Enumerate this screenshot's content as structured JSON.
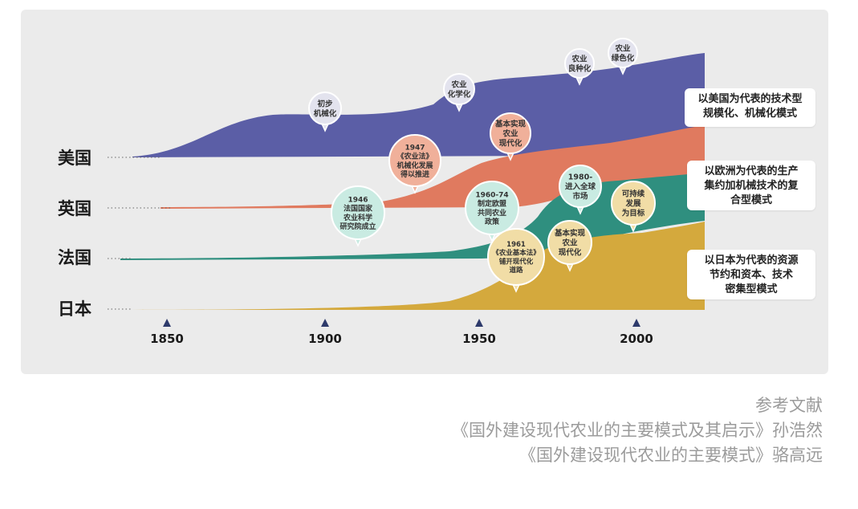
{
  "countries": [
    "美国",
    "英国",
    "法国",
    "日本"
  ],
  "years": [
    "1850",
    "1900",
    "1950",
    "2000"
  ],
  "colors": {
    "usa": "#5b5ea6",
    "uk": "#e07a5f",
    "france": "#2f8f7f",
    "japan": "#d4a93d",
    "bubble_usa": "#e3e3ee",
    "bubble_uk": "#f0b09a",
    "bubble_france": "#c9ebe2",
    "bubble_japan": "#f1dda6"
  },
  "bubbles": [
    {
      "id": "usa-initial-mechanization",
      "lines": [
        "初步",
        "机械化"
      ]
    },
    {
      "id": "usa-agri-chemicalization",
      "lines": [
        "农业",
        "化学化"
      ]
    },
    {
      "id": "usa-improved-seeds",
      "lines": [
        "农业",
        "良种化"
      ]
    },
    {
      "id": "usa-green-agriculture",
      "lines": [
        "农业",
        "绿色化"
      ]
    },
    {
      "id": "uk-1947-agriculture-act",
      "lines": [
        "1947",
        "《农业法》",
        "机械化发展",
        "得以推进"
      ]
    },
    {
      "id": "uk-modernization",
      "lines": [
        "基本实现",
        "农业",
        "现代化"
      ]
    },
    {
      "id": "fr-1946-institute",
      "lines": [
        "1946",
        "法国国家",
        "农业科学",
        "研究院成立"
      ]
    },
    {
      "id": "fr-1960-74-cap",
      "lines": [
        "1960-74",
        "制定欧盟",
        "共同农业",
        "政策"
      ]
    },
    {
      "id": "fr-1980-globalization",
      "lines": [
        "1980-",
        "进入全球",
        "市场"
      ]
    },
    {
      "id": "sustainable-development",
      "lines": [
        "可持续",
        "发展",
        "为目标"
      ]
    },
    {
      "id": "jp-1961-basic-law",
      "lines": [
        "1961",
        "《农业基本法》",
        "铺开现代化",
        "道路"
      ]
    },
    {
      "id": "jp-modernization",
      "lines": [
        "基本实现",
        "农业",
        "现代化"
      ]
    }
  ],
  "modes": [
    {
      "lines": [
        "以美国为代表的技术型",
        "规模化、机械化模式"
      ]
    },
    {
      "lines": [
        "以欧洲为代表的生产",
        "集约加机械技术的复",
        "合型模式"
      ]
    },
    {
      "lines": [
        "以日本为代表的资源",
        "节约和资本、技术",
        "密集型模式"
      ]
    }
  ],
  "references": {
    "title": "参考文献",
    "items": [
      "《国外建设现代农业的主要模式及其启示》孙浩然",
      "《国外建设现代农业的主要模式》骆高远"
    ]
  }
}
